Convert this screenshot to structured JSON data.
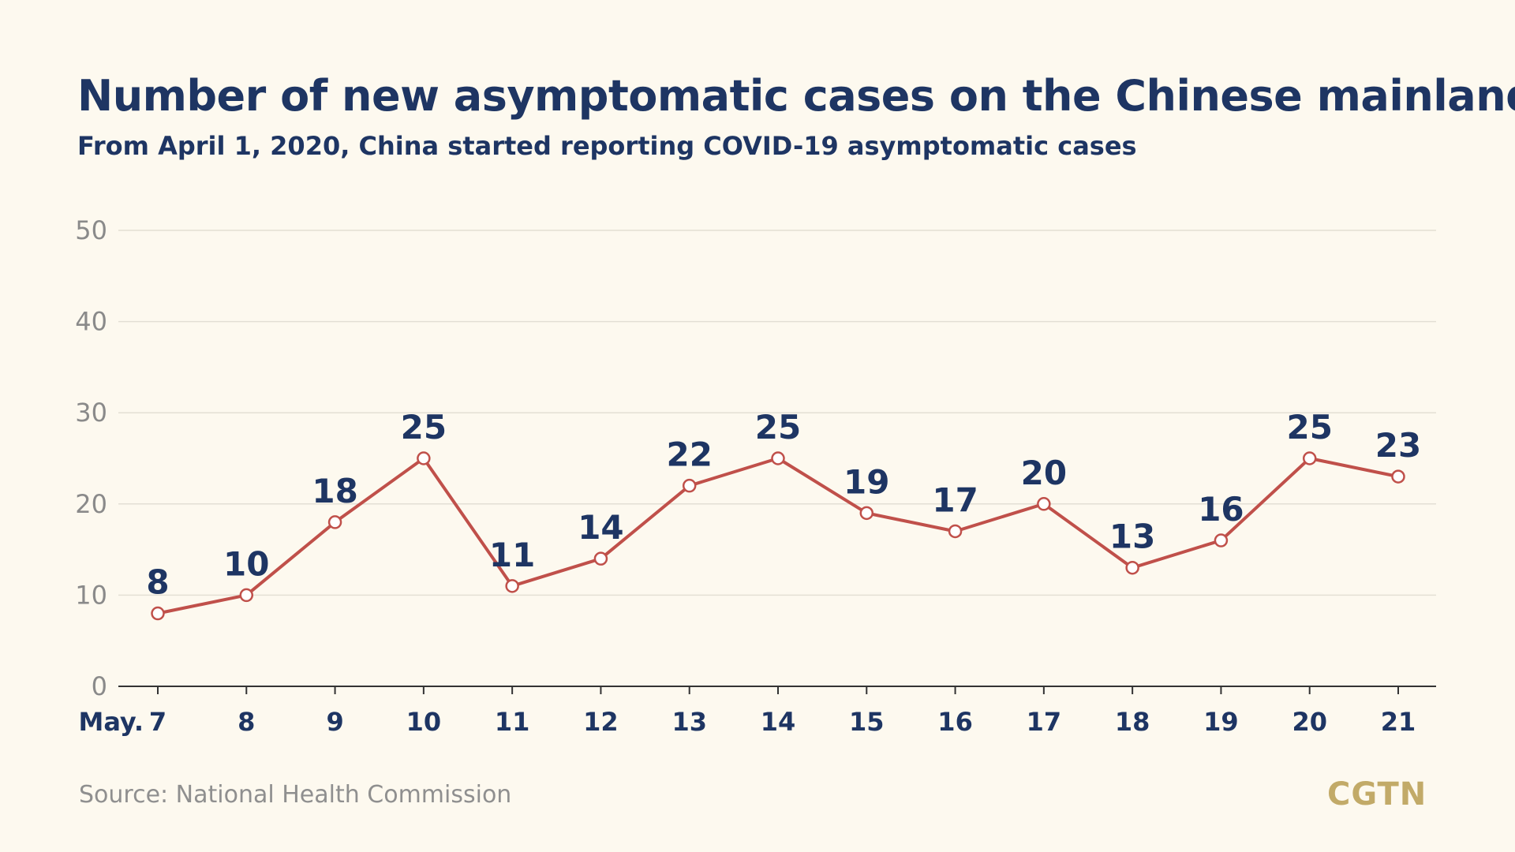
{
  "title": "Number of new asymptomatic cases on the Chinese mainland",
  "subtitle": "From April 1, 2020, China started reporting COVID-19 asymptomatic cases",
  "source": "Source: National Health Commission",
  "logo_text": "CGTN",
  "colors": {
    "background": "#fdf9ef",
    "title": "#1e3563",
    "line": "#c0504a",
    "marker_fill": "#ffffff",
    "gridline": "#e3dfd4",
    "axis": "#333333",
    "tick_label": "#8a8a8a",
    "logo": "#c2aa68"
  },
  "chart_data": {
    "type": "line",
    "x_prefix": "May.",
    "categories": [
      "7",
      "8",
      "9",
      "10",
      "11",
      "12",
      "13",
      "14",
      "15",
      "16",
      "17",
      "18",
      "19",
      "20",
      "21"
    ],
    "series": [
      {
        "values": [
          8,
          10,
          18,
          25,
          11,
          14,
          22,
          25,
          19,
          17,
          20,
          13,
          16,
          25,
          23
        ]
      }
    ],
    "y_ticks": [
      "0",
      "10",
      "20",
      "30",
      "40",
      "50"
    ],
    "ylim": [
      0,
      50
    ],
    "grid": true,
    "data_labels": true
  }
}
